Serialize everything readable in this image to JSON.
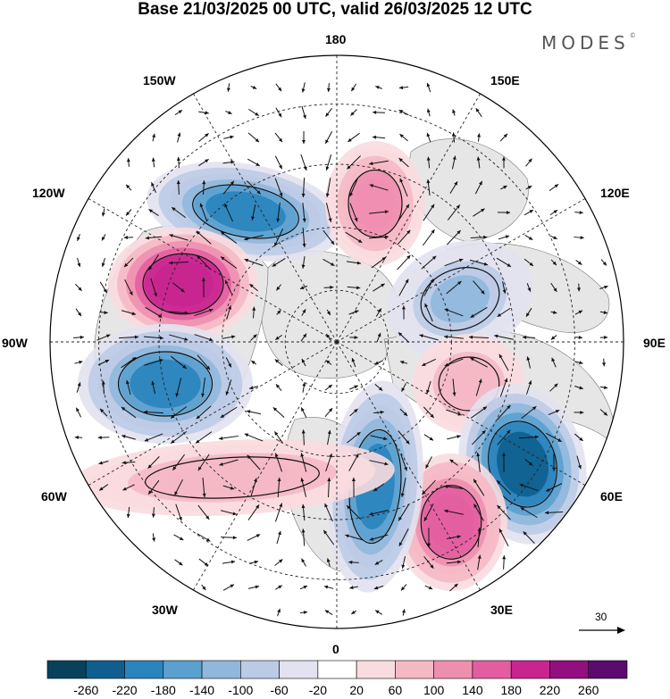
{
  "title": "Base 21/03/2025 00 UTC, valid 26/03/2025 12 UTC",
  "brand": "MODES",
  "brand_mark": "©",
  "longitude_labels": {
    "top": "180",
    "bottom": "0",
    "left": "90W",
    "right": "90E",
    "upper_left_1": "150W",
    "upper_left_2": "120W",
    "lower_left_1": "60W",
    "lower_left_2": "30W",
    "upper_right_1": "150E",
    "upper_right_2": "120E",
    "lower_right_1": "60E",
    "lower_right_2": "30E"
  },
  "reference_vector": {
    "value": "30",
    "icon": "right-arrow-icon"
  },
  "colorbar": {
    "ticks": [
      "-260",
      "-220",
      "-180",
      "-140",
      "-100",
      "-60",
      "-20",
      "20",
      "60",
      "100",
      "140",
      "180",
      "220",
      "260"
    ],
    "colors": [
      "#08415c",
      "#0e5f8f",
      "#2a84bd",
      "#5aa1cf",
      "#8fb8dc",
      "#bccbe5",
      "#e2e2f0",
      "#ffffff",
      "#f9dcdf",
      "#f5b9c5",
      "#ef8fb0",
      "#e35ea0",
      "#c92591",
      "#930f80",
      "#5b0a6e"
    ]
  },
  "anomaly_centers": [
    {
      "sign": "negative",
      "level": "-180"
    },
    {
      "sign": "positive",
      "level": "220"
    },
    {
      "sign": "negative",
      "level": "-180"
    },
    {
      "sign": "positive",
      "level": "140"
    },
    {
      "sign": "negative",
      "level": "-100"
    },
    {
      "sign": "positive",
      "level": "100"
    },
    {
      "sign": "negative",
      "level": "-220"
    },
    {
      "sign": "positive",
      "level": "180"
    },
    {
      "sign": "negative",
      "level": "-180"
    },
    {
      "sign": "positive",
      "level": "100"
    }
  ]
}
